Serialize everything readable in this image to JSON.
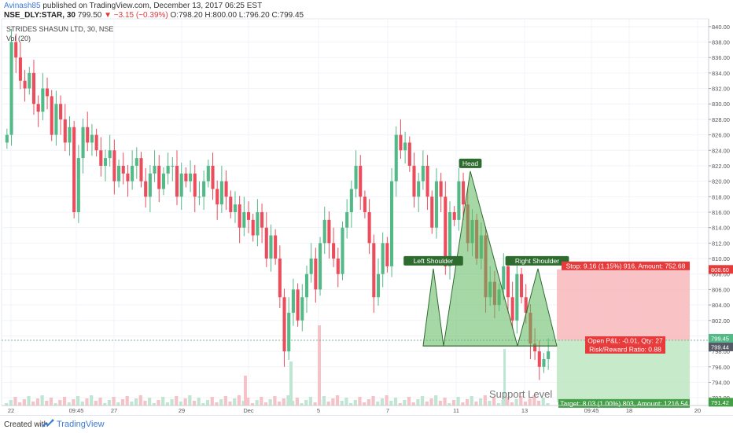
{
  "header": {
    "author": "Avinash85",
    "published": "published on TradingView.com, December 13, 2017 06:25 EST",
    "symbol": "NSE_DLY:STAR, 30",
    "price": "799.50",
    "change": "▼ −3.15 (−0.39%)",
    "ohlc": "O:798.20 H:800.00 L:796.20 C:799.45"
  },
  "legend": {
    "title": "STRIDES SHASUN LTD, 30, NSE",
    "vol": "Vol (20)"
  },
  "footer": {
    "created": "Created with",
    "brand": "TradingView"
  },
  "colors": {
    "up": "#53b987",
    "down": "#eb4d5c",
    "pattern_fill": "#5cb85c",
    "stop_zone": "#f8b4b8",
    "target_zone": "#b9e6bd"
  },
  "chart_data": {
    "type": "candlestick",
    "ylim": [
      791,
      841
    ],
    "y_ticks": [
      "840.00",
      "838.00",
      "836.00",
      "834.00",
      "832.00",
      "830.00",
      "828.00",
      "826.00",
      "824.00",
      "822.00",
      "820.00",
      "818.00",
      "816.00",
      "814.00",
      "812.00",
      "810.00",
      "808.00",
      "806.00",
      "804.00",
      "802.00",
      "800.00",
      "798.00",
      "796.00",
      "794.00",
      "792.00"
    ],
    "x_ticks": [
      "22",
      "09:45",
      "27",
      "29",
      "Dec",
      "5",
      "7",
      "11",
      "13",
      "09:45",
      "18",
      "20"
    ],
    "close_path": [
      826,
      838,
      836,
      833,
      832,
      834,
      830,
      829,
      832,
      831,
      826,
      830,
      828,
      825,
      827,
      816,
      823,
      827,
      825,
      826,
      824,
      822,
      823,
      824,
      820,
      822,
      821,
      820,
      822,
      823,
      820,
      818,
      821,
      822,
      819,
      821,
      822,
      822,
      818,
      821,
      820,
      821,
      818,
      818,
      820,
      822,
      819,
      817,
      820,
      818,
      816,
      817,
      814,
      816,
      815,
      813,
      816,
      814,
      810,
      813,
      810,
      805,
      798,
      803,
      806,
      802,
      805,
      808,
      810,
      806,
      812,
      815,
      812,
      810,
      808,
      814,
      816,
      819,
      822,
      818,
      816,
      812,
      805,
      808,
      812,
      809,
      820,
      826,
      824,
      825,
      822,
      818,
      820,
      822,
      818,
      814,
      820,
      818,
      809,
      816,
      815,
      820,
      817,
      812,
      815,
      810,
      813,
      805,
      807,
      804,
      806,
      809,
      805,
      802,
      808,
      805,
      803,
      799,
      798,
      796,
      797,
      798
    ],
    "points": {
      "left_shoulder": 808.7,
      "head": 821.3,
      "right_shoulder": 808.7,
      "neckline": 798.7
    },
    "annotations": {
      "left_shoulder": "Left Shoulder",
      "head": "Head",
      "right_shoulder": "Right Shoulder",
      "support": "Support Level"
    },
    "position": {
      "stop_label": "Stop: 9.16 (1.15%) 916, Amount: 752.68",
      "open_label": "Open P&L: -0.01, Qty: 27",
      "rr_label": "Risk/Reward Ratio: 0.88",
      "target_label": "Target: 8.03 (1.00%) 803, Amount: 1216.54",
      "stop": 808.6,
      "entry": 799.44,
      "target": 791.42
    },
    "price_tags": {
      "stop": "808.60",
      "last": "799.45",
      "entry": "799.44",
      "target": "791.42"
    }
  }
}
